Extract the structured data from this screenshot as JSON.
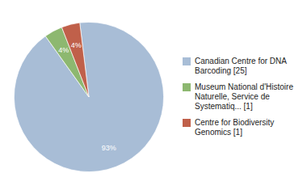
{
  "chart_data": {
    "type": "pie",
    "categories": [
      "Canadian Centre for DNA\nBarcoding [25]",
      "Museum National d'Histoire\nNaturelle, Service de\nSystematiq... [1]",
      "Centre for Biodiversity\nGenomics [1]"
    ],
    "values": [
      93,
      4,
      4
    ],
    "value_labels": [
      "93%",
      "4%",
      "4%"
    ],
    "colors": [
      "#a8bdd6",
      "#8db870",
      "#c0604a"
    ],
    "data_labels": true,
    "legend": "right"
  }
}
